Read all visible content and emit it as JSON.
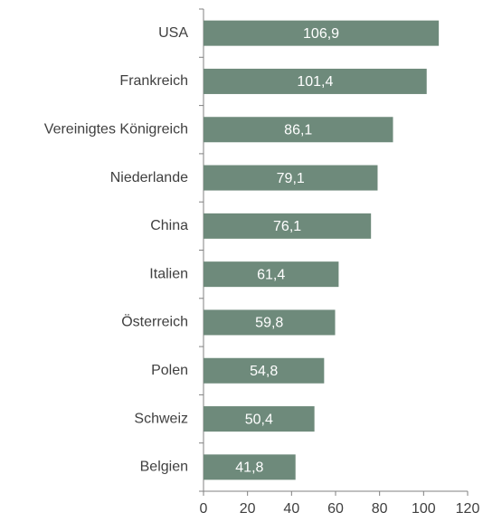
{
  "chart_data": {
    "type": "bar",
    "orientation": "horizontal",
    "categories": [
      "USA",
      "Frankreich",
      "Vereinigtes Königreich",
      "Niederlande",
      "China",
      "Italien",
      "Österreich",
      "Polen",
      "Schweiz",
      "Belgien"
    ],
    "values": [
      106.9,
      101.4,
      86.1,
      79.1,
      76.1,
      61.4,
      59.8,
      54.8,
      50.4,
      41.8
    ],
    "value_labels": [
      "106,9",
      "101,4",
      "86,1",
      "79,1",
      "76,1",
      "61,4",
      "59,8",
      "54,8",
      "50,4",
      "41,8"
    ],
    "color": "#6e8a7b",
    "xlim": [
      0,
      120
    ],
    "xticks": [
      0,
      20,
      40,
      60,
      80,
      100,
      120
    ]
  }
}
